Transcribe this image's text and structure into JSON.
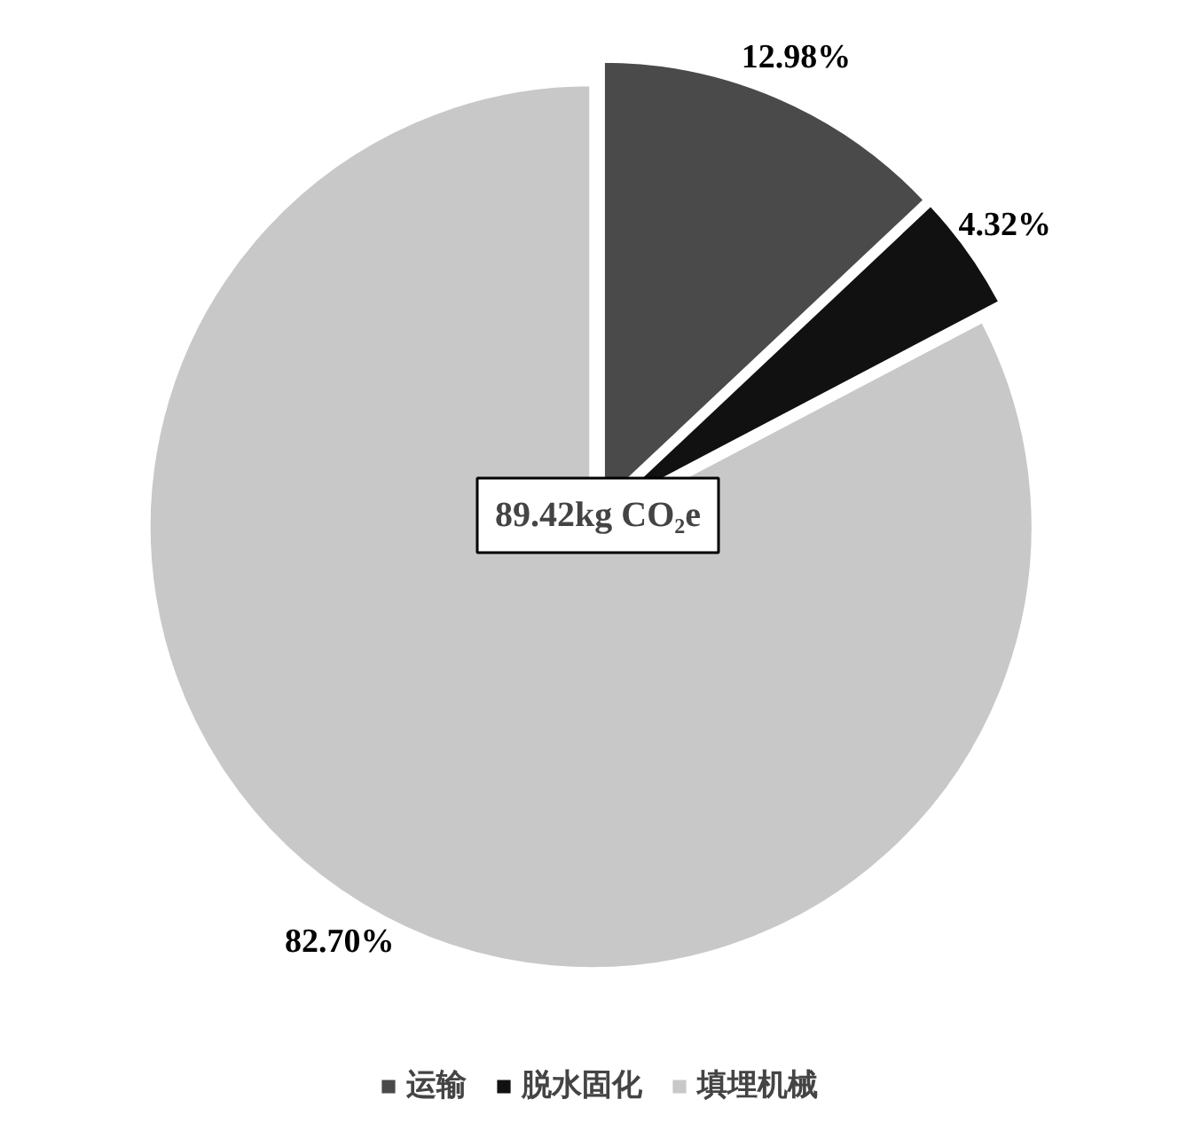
{
  "chart_data": {
    "type": "pie",
    "categories": [
      "运输",
      "脱水固化",
      "填埋机械"
    ],
    "values": [
      12.98,
      4.32,
      82.7
    ],
    "colors": [
      "#4a4a4a",
      "#111111",
      "#c8c8c8"
    ],
    "value_labels": [
      "12.98%",
      "4.32%",
      "82.70%"
    ],
    "annotations": [
      "89.42kg CO₂e"
    ],
    "legend": "bottom"
  }
}
